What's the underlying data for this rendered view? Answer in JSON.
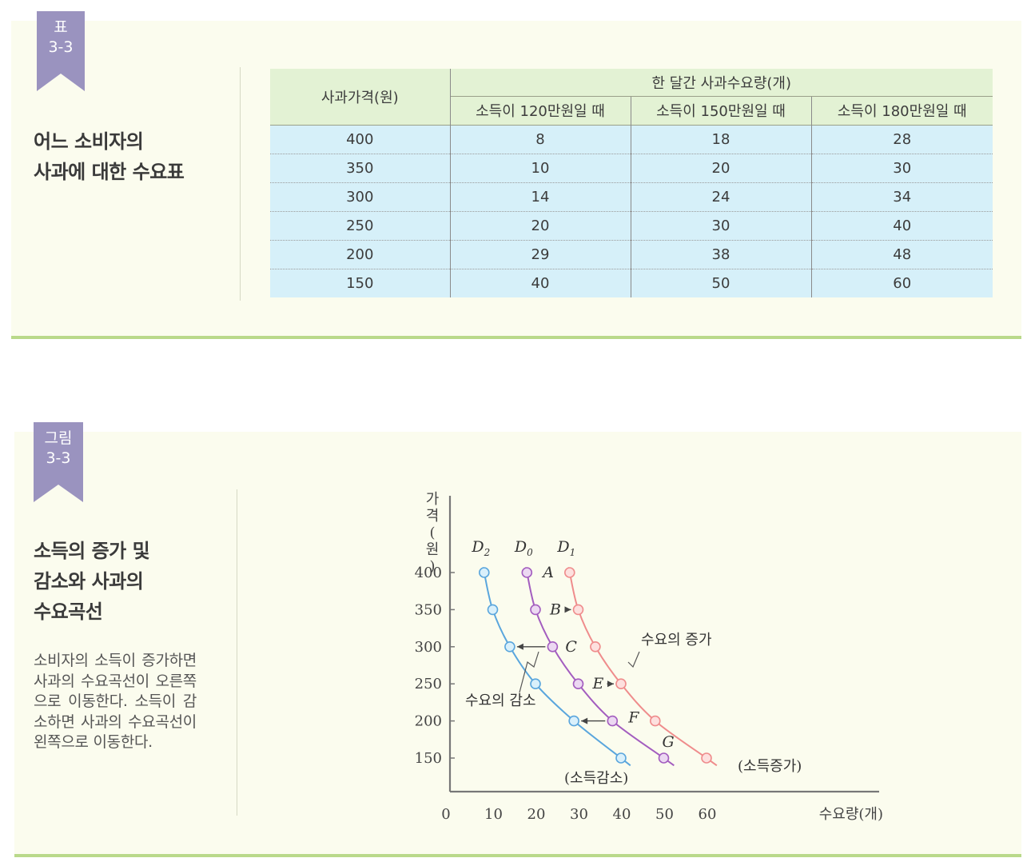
{
  "table_block": {
    "badge_label": "표",
    "badge_number": "3-3",
    "title": "어느 소비자의\n사과에 대한 수요표",
    "headers": {
      "price": "사과가격(원)",
      "group": "한 달간 사과수요량(개)",
      "income_120": "소득이 120만원일 때",
      "income_150": "소득이 150만원일 때",
      "income_180": "소득이 180만원일 때"
    },
    "rows": [
      [
        "400",
        "8",
        "18",
        "28"
      ],
      [
        "350",
        "10",
        "20",
        "30"
      ],
      [
        "300",
        "14",
        "24",
        "34"
      ],
      [
        "250",
        "20",
        "30",
        "40"
      ],
      [
        "200",
        "29",
        "38",
        "48"
      ],
      [
        "150",
        "40",
        "50",
        "60"
      ]
    ]
  },
  "figure_block": {
    "badge_label": "그림",
    "badge_number": "3-3",
    "title": "소득의 증가 및\n감소와 사과의\n수요곡선",
    "description": "소비자의 소득이 증가하면 사과의 수요곡선이 오른쪽으로 이동한다. 소득이 감소하면 사과의 수요곡선이 왼쪽으로 이동한다."
  },
  "chart_data": {
    "type": "line",
    "ylabel": "가격(원)",
    "xlabel": "수요량(개)",
    "origin_label": "0",
    "xticks": [
      10,
      20,
      30,
      40,
      50,
      60
    ],
    "yticks": [
      400,
      350,
      300,
      250,
      200,
      150
    ],
    "xlim": [
      0,
      75
    ],
    "ylim": [
      100,
      420
    ],
    "grid": false,
    "series": [
      {
        "name": "D",
        "subscript": "2",
        "color": "#5aa6dd",
        "points": [
          [
            8,
            400
          ],
          [
            10,
            350
          ],
          [
            14,
            300
          ],
          [
            20,
            250
          ],
          [
            29,
            200
          ],
          [
            40,
            150
          ]
        ]
      },
      {
        "name": "D",
        "subscript": "0",
        "color": "#a35dbf",
        "points": [
          [
            18,
            400
          ],
          [
            20,
            350
          ],
          [
            24,
            300
          ],
          [
            30,
            250
          ],
          [
            38,
            200
          ],
          [
            50,
            150
          ]
        ]
      },
      {
        "name": "D",
        "subscript": "1",
        "color": "#ef8c8c",
        "points": [
          [
            28,
            400
          ],
          [
            30,
            350
          ],
          [
            34,
            300
          ],
          [
            40,
            250
          ],
          [
            48,
            200
          ],
          [
            60,
            150
          ]
        ]
      }
    ],
    "point_labels": [
      {
        "text": "A",
        "x": 18,
        "y": 400
      },
      {
        "text": "B",
        "x": 20,
        "y": 350
      },
      {
        "text": "C",
        "x": 24,
        "y": 300
      },
      {
        "text": "E",
        "x": 30,
        "y": 250
      },
      {
        "text": "F",
        "x": 38,
        "y": 200
      },
      {
        "text": "G",
        "x": 50,
        "y": 150
      }
    ],
    "annotations": {
      "increase": "수요의 증가",
      "decrease": "수요의 감소",
      "income_increase": "(소득증가)",
      "income_decrease": "(소득감소)"
    }
  }
}
